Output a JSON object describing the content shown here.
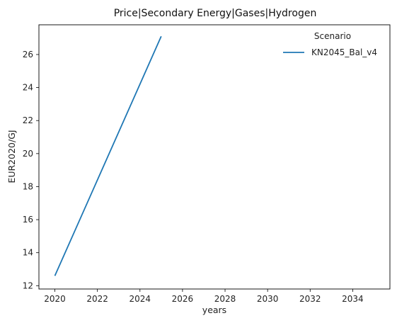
{
  "chart_data": {
    "type": "line",
    "title": "Price|Secondary Energy|Gases|Hydrogen",
    "xlabel": "years",
    "ylabel": "EUR2020/GJ",
    "xlim": [
      2019.25,
      2035.75
    ],
    "ylim": [
      11.8,
      27.8
    ],
    "x_ticks": [
      2020,
      2022,
      2024,
      2026,
      2028,
      2030,
      2032,
      2034
    ],
    "y_ticks": [
      12,
      14,
      16,
      18,
      20,
      22,
      24,
      26
    ],
    "grid": false,
    "legend": {
      "title": "Scenario",
      "placement": "top-right"
    },
    "series": [
      {
        "name": "KN2045_Bal_v4",
        "color": "#1f77b4",
        "x": [
          2020,
          2025
        ],
        "y": [
          12.6,
          27.1
        ]
      }
    ]
  }
}
